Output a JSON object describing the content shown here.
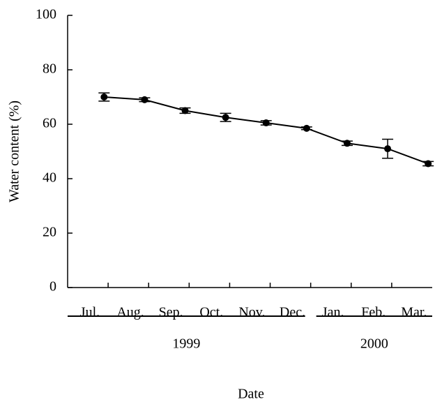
{
  "chart_data": {
    "type": "line",
    "y_label": "Water content (%)",
    "x_label": "Date",
    "categories": [
      "Jul.",
      "Aug.",
      "Sep.",
      "Oct.",
      "Nov.",
      "Dec.",
      "Jan.",
      "Feb.",
      "Mar."
    ],
    "series": [
      {
        "color": "#000000",
        "values": [
          70,
          69,
          65,
          62.5,
          60.5,
          58.5,
          53,
          51,
          45.5
        ],
        "errors": [
          1.5,
          0.7,
          1,
          1.5,
          0.8,
          0.5,
          0.8,
          3.5,
          0.8
        ]
      }
    ],
    "groups": [
      {
        "label": "1999",
        "from": "Jul.",
        "to": "Dec."
      },
      {
        "label": "2000",
        "from": "Jan.",
        "to": "Mar."
      }
    ],
    "ylim": [
      0,
      100
    ],
    "yticks": [
      0,
      20,
      40,
      60,
      80,
      100
    ],
    "grid": false
  }
}
